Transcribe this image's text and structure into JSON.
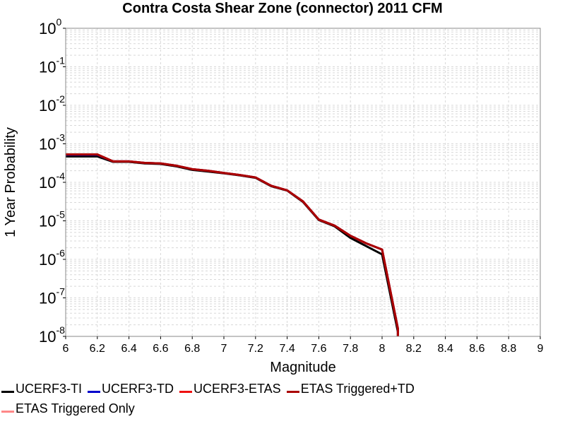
{
  "chart_data": {
    "type": "line",
    "title": "Contra Costa Shear Zone (connector) 2011 CFM",
    "xlabel": "Magnitude",
    "ylabel": "1 Year Probability",
    "xlim": [
      6,
      9
    ],
    "ylog": true,
    "ylim_exponents": [
      -8.0,
      0
    ],
    "x_ticks": [
      "6",
      "6.2",
      "6.4",
      "6.6",
      "6.8",
      "7",
      "7.2",
      "7.4",
      "7.6",
      "7.8",
      "8",
      "8.2",
      "8.4",
      "8.6",
      "8.8",
      "9"
    ],
    "y_tick_exponents": [
      "0",
      "-1",
      "-2",
      "-3",
      "-4",
      "-5",
      "-6",
      "-7",
      "-8"
    ],
    "y_tick_base": "10",
    "grid": true,
    "legend_position": "bottom",
    "series": [
      {
        "name": "UCERF3-TI",
        "color": "#000000",
        "x": [
          6.0,
          6.1,
          6.2,
          6.3,
          6.4,
          6.5,
          6.6,
          6.7,
          6.8,
          6.9,
          7.0,
          7.1,
          7.2,
          7.3,
          7.4,
          7.5,
          7.6,
          7.7,
          7.8,
          7.9,
          8.0,
          8.1,
          8.1
        ],
        "y": [
          0.00047,
          0.00047,
          0.00047,
          0.00034,
          0.00034,
          0.00031,
          0.0003,
          0.00026,
          0.00021,
          0.00019,
          0.000171,
          0.000152,
          0.000131,
          7.9e-05,
          6.1e-05,
          3.1e-05,
          1.05e-05,
          7.2e-06,
          3.6e-06,
          2.2e-06,
          1.35e-06,
          1.3e-08,
          1e-08
        ]
      },
      {
        "name": "UCERF3-TD",
        "color": "#0000cc",
        "x": [
          6.0,
          6.1,
          6.2,
          6.3,
          6.4,
          6.5,
          6.6,
          6.7,
          6.8,
          6.9,
          7.0,
          7.1,
          7.2,
          7.3,
          7.4,
          7.5,
          7.6,
          7.7,
          7.8,
          7.9,
          8.0,
          8.1,
          8.1
        ],
        "y": [
          0.00052,
          0.00052,
          0.00052,
          0.00035,
          0.00035,
          0.00032,
          0.00031,
          0.00027,
          0.00022,
          0.0002,
          0.000175,
          0.000155,
          0.000134,
          8.1e-05,
          6.2e-05,
          3.2e-05,
          1.08e-05,
          7.5e-06,
          4.1e-06,
          2.6e-06,
          1.8e-06,
          1.6e-08,
          1e-08
        ]
      },
      {
        "name": "UCERF3-ETAS",
        "color": "#ee1111",
        "x": [
          6.0,
          6.1,
          6.2,
          6.3,
          6.4,
          6.5,
          6.6,
          6.7,
          6.8,
          6.9,
          7.0,
          7.1,
          7.2,
          7.3,
          7.4,
          7.5,
          7.6,
          7.7,
          7.8,
          7.9,
          8.0,
          8.1,
          8.1
        ],
        "y": [
          0.00053,
          0.00053,
          0.00053,
          0.00035,
          0.00035,
          0.00032,
          0.00031,
          0.00027,
          0.00022,
          0.0002,
          0.000175,
          0.000155,
          0.000134,
          8.1e-05,
          6.2e-05,
          3.2e-05,
          1.08e-05,
          7.5e-06,
          4.1e-06,
          2.6e-06,
          1.8e-06,
          1.6e-08,
          1e-08
        ]
      },
      {
        "name": "ETAS Triggered+TD",
        "color": "#aa0000",
        "x": [
          6.0,
          6.1,
          6.2,
          6.3,
          6.4,
          6.5,
          6.6,
          6.7,
          6.8,
          6.9,
          7.0,
          7.1,
          7.2,
          7.3,
          7.4,
          7.5,
          7.6,
          7.7,
          7.8,
          7.9,
          8.0,
          8.1,
          8.1
        ],
        "y": [
          0.00053,
          0.00053,
          0.00053,
          0.00035,
          0.00035,
          0.00032,
          0.00031,
          0.00027,
          0.00022,
          0.0002,
          0.000175,
          0.000155,
          0.000134,
          8.1e-05,
          6.2e-05,
          3.2e-05,
          1.08e-05,
          7.5e-06,
          4.1e-06,
          2.6e-06,
          1.8e-06,
          1.6e-08,
          1e-08
        ]
      },
      {
        "name": "ETAS Triggered Only",
        "color": "#ff8888",
        "x": [],
        "y": []
      }
    ]
  }
}
